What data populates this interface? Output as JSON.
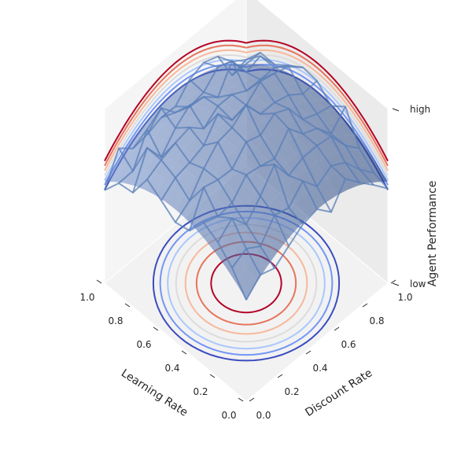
{
  "chart_data": {
    "type": "surface3d",
    "title": "",
    "x_axis": {
      "label": "Learning Rate",
      "range": [
        0,
        1.0
      ],
      "ticks": [
        0.0,
        0.2,
        0.4,
        0.6,
        0.8,
        1.0
      ],
      "tick_labels": [
        "0.0",
        "0.2",
        "0.4",
        "0.6",
        "0.8",
        "1.0"
      ]
    },
    "y_axis": {
      "label": "Discount Rate",
      "range": [
        0,
        1.0
      ],
      "ticks": [
        0.0,
        0.2,
        0.4,
        0.6,
        0.8,
        1.0
      ],
      "tick_labels": [
        "0.0",
        "0.2",
        "0.4",
        "0.6",
        "0.8",
        "1.0"
      ]
    },
    "z_axis": {
      "label": "Agent Performance",
      "range": [
        0,
        1
      ],
      "ticks": [
        0,
        1
      ],
      "tick_labels": [
        "low",
        "high"
      ]
    },
    "surface": {
      "function": "1 - 1.3*((x-0.5)^2 + (y-0.5)^2)",
      "color": "#4a6fa5",
      "alpha": 0.55
    },
    "wireframe": {
      "color": "#5a7fb8",
      "note_values": "noisy copy of surface"
    },
    "contour_levels": [
      0.72,
      0.76,
      0.8,
      0.84,
      0.88,
      0.92,
      0.96
    ],
    "contour_colors": [
      "#3b4cc0",
      "#7396f5",
      "#aac7fd",
      "#dddcdc",
      "#f7b89c",
      "#e7745b",
      "#b40426"
    ],
    "grid": true,
    "pane_color": "#f2f2f2"
  }
}
